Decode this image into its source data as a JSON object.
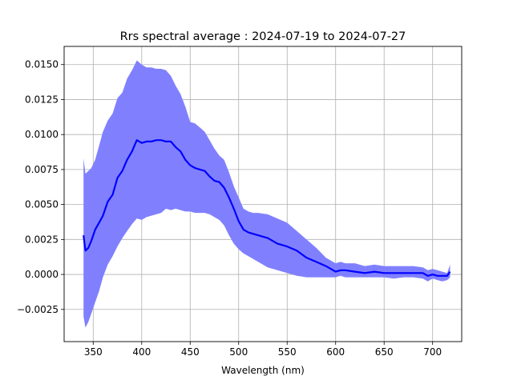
{
  "chart_data": {
    "type": "area",
    "title": "Rrs spectral average : 2024-07-19 to 2024-07-27",
    "xlabel": "Wavelength (nm)",
    "ylabel": "",
    "xlim": [
      320,
      730
    ],
    "ylim": [
      -0.0048,
      0.0163
    ],
    "xticks": [
      350,
      400,
      450,
      500,
      550,
      600,
      650,
      700
    ],
    "xtick_labels": [
      "350",
      "400",
      "450",
      "500",
      "550",
      "600",
      "650",
      "700"
    ],
    "yticks": [
      -0.0025,
      0.0,
      0.0025,
      0.005,
      0.0075,
      0.01,
      0.0125,
      0.015
    ],
    "ytick_labels": [
      "−0.0025",
      "0.0000",
      "0.0025",
      "0.0050",
      "0.0075",
      "0.0100",
      "0.0125",
      "0.0150"
    ],
    "grid": true,
    "mean_color": "#0000ff",
    "band_color": "#8080ff",
    "x": [
      340,
      342,
      345,
      348,
      352,
      356,
      360,
      365,
      370,
      375,
      380,
      385,
      390,
      395,
      400,
      405,
      410,
      415,
      420,
      425,
      430,
      435,
      440,
      445,
      450,
      455,
      460,
      465,
      470,
      475,
      480,
      485,
      490,
      495,
      500,
      505,
      510,
      515,
      520,
      530,
      540,
      550,
      560,
      570,
      580,
      590,
      600,
      605,
      610,
      620,
      630,
      640,
      650,
      660,
      670,
      680,
      690,
      695,
      700,
      705,
      710,
      715,
      718
    ],
    "mean": [
      0.0028,
      0.0017,
      0.0019,
      0.0024,
      0.0032,
      0.0037,
      0.0042,
      0.0052,
      0.0057,
      0.0069,
      0.0074,
      0.0082,
      0.0088,
      0.0096,
      0.0094,
      0.0095,
      0.0095,
      0.0096,
      0.0096,
      0.0095,
      0.0095,
      0.0091,
      0.0088,
      0.0082,
      0.0078,
      0.0076,
      0.0075,
      0.0074,
      0.007,
      0.0067,
      0.0066,
      0.0062,
      0.0055,
      0.0047,
      0.0038,
      0.0032,
      0.003,
      0.0029,
      0.0028,
      0.0026,
      0.0022,
      0.002,
      0.0017,
      0.0012,
      0.0009,
      0.0006,
      0.0002,
      0.0003,
      0.0003,
      0.0002,
      0.0001,
      0.0002,
      0.0001,
      0.0001,
      0.0001,
      0.0001,
      0.0001,
      -0.0001,
      0.0,
      -0.0001,
      -0.0001,
      -0.0001,
      0.0002
    ],
    "upper": [
      0.0083,
      0.0072,
      0.0074,
      0.0076,
      0.0082,
      0.0092,
      0.0102,
      0.011,
      0.0115,
      0.0126,
      0.013,
      0.014,
      0.0146,
      0.0153,
      0.015,
      0.0148,
      0.0148,
      0.0147,
      0.0147,
      0.0146,
      0.0142,
      0.0135,
      0.0129,
      0.012,
      0.0109,
      0.0108,
      0.0105,
      0.0102,
      0.0096,
      0.009,
      0.0085,
      0.0082,
      0.0073,
      0.0063,
      0.0055,
      0.0047,
      0.0045,
      0.0044,
      0.0044,
      0.0043,
      0.004,
      0.0037,
      0.0031,
      0.0025,
      0.0019,
      0.0012,
      0.0008,
      0.0009,
      0.0008,
      0.0008,
      0.0006,
      0.0007,
      0.0006,
      0.0006,
      0.0006,
      0.0006,
      0.0005,
      0.0003,
      0.0004,
      0.0003,
      0.0002,
      0.0001,
      0.0007
    ],
    "lower": [
      -0.003,
      -0.0038,
      -0.0034,
      -0.0028,
      -0.002,
      -0.0012,
      -0.0002,
      0.0007,
      0.0013,
      0.002,
      0.0026,
      0.0031,
      0.0036,
      0.004,
      0.0039,
      0.0041,
      0.0042,
      0.0043,
      0.0044,
      0.0047,
      0.0046,
      0.0047,
      0.0046,
      0.0045,
      0.0045,
      0.0044,
      0.0044,
      0.0044,
      0.0043,
      0.0041,
      0.0039,
      0.0035,
      0.0028,
      0.0022,
      0.0018,
      0.0015,
      0.0013,
      0.0011,
      0.0009,
      0.0005,
      0.0003,
      0.0001,
      -0.0001,
      -0.0002,
      -0.0002,
      -0.0002,
      -0.0002,
      -0.0001,
      -0.0002,
      -0.0002,
      -0.0002,
      -0.0002,
      -0.0002,
      -0.0003,
      -0.0002,
      -0.0002,
      -0.0003,
      -0.0005,
      -0.0003,
      -0.0004,
      -0.0005,
      -0.0004,
      -0.0002
    ]
  }
}
